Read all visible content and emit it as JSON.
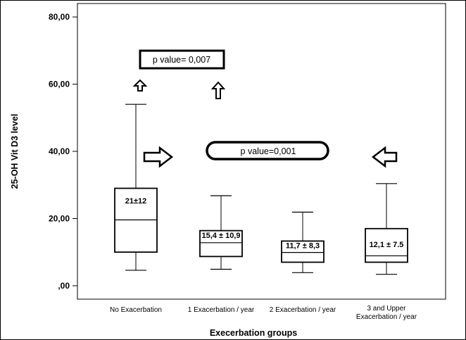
{
  "chart_data": {
    "type": "boxplot",
    "xlabel": "Execerbation groups",
    "ylabel": "25-OH Vit D3 level",
    "ylim": [
      -4,
      84
    ],
    "yticks": [
      {
        "value": 0,
        "label": ",00"
      },
      {
        "value": 20,
        "label": "20,00"
      },
      {
        "value": 40,
        "label": "40,00"
      },
      {
        "value": 60,
        "label": "60,00"
      },
      {
        "value": 80,
        "label": "80,00"
      }
    ],
    "categories": [
      {
        "lines": [
          "No Exacerbation"
        ]
      },
      {
        "lines": [
          "1 Exacerbation / year"
        ]
      },
      {
        "lines": [
          "2 Exacerbation / year"
        ]
      },
      {
        "lines": [
          "3 and Upper",
          "Exacerbation / year"
        ]
      }
    ],
    "boxes": [
      {
        "min": 4.6,
        "q1": 10,
        "median": 19.6,
        "q3": 29,
        "max": 54,
        "label": "21±12"
      },
      {
        "min": 4.9,
        "q1": 8.7,
        "median": 12.8,
        "q3": 16.4,
        "max": 26.8,
        "label": "15,4 ± 10,9"
      },
      {
        "min": 3.9,
        "q1": 7,
        "median": 9.9,
        "q3": 13.3,
        "max": 21.9,
        "label": "11,7 ± 8,3"
      },
      {
        "min": 3.4,
        "q1": 7,
        "median": 8.9,
        "q3": 17,
        "max": 30.4,
        "label": "12,1 ± 7.5"
      }
    ],
    "annotations": [
      {
        "text": "p value= 0,007",
        "comparison": "No Exacerbation vs 1 Exacerbation / year"
      },
      {
        "text": "p value=0,001",
        "comparison": "No Exacerbation vs 3 and Upper Exacerbation / year"
      }
    ]
  }
}
